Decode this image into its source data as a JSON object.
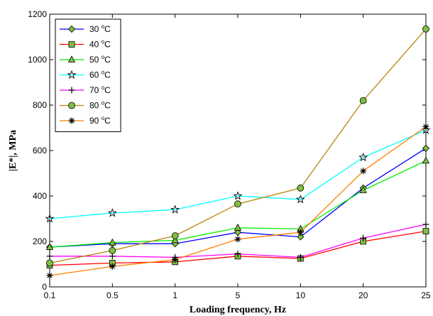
{
  "chart_data": {
    "type": "line",
    "xlabel": "Loading frequency, Hz",
    "ylabel": "|E*|, MPa",
    "categories": [
      "0.1",
      "0.5",
      "1",
      "5",
      "10",
      "20",
      "25"
    ],
    "ylim": [
      0,
      1200
    ],
    "yticks": [
      0,
      200,
      400,
      600,
      800,
      1000,
      1200
    ],
    "grid": false,
    "legend_position": "top-left",
    "series": [
      {
        "name": "30 °C",
        "label_num": "30",
        "label_unit": "C",
        "color": "#0000ff",
        "marker": "diamond",
        "values": [
          175,
          190,
          190,
          240,
          220,
          435,
          610
        ]
      },
      {
        "name": "40 °C",
        "label_num": "40",
        "label_unit": "C",
        "color": "#ff0000",
        "marker": "square",
        "values": [
          95,
          105,
          110,
          135,
          125,
          200,
          245
        ]
      },
      {
        "name": "50 °C",
        "label_num": "50",
        "label_unit": "C",
        "color": "#00ee00",
        "marker": "triangle",
        "values": [
          175,
          195,
          205,
          260,
          255,
          425,
          555
        ]
      },
      {
        "name": "60 °C",
        "label_num": "60",
        "label_unit": "C",
        "color": "#00ffff",
        "marker": "star",
        "values": [
          300,
          325,
          340,
          400,
          385,
          570,
          690
        ]
      },
      {
        "name": "70 °C",
        "label_num": "70",
        "label_unit": "C",
        "color": "#ff00ff",
        "marker": "plus",
        "values": [
          135,
          135,
          130,
          145,
          130,
          215,
          275
        ]
      },
      {
        "name": "80 °C",
        "label_num": "80",
        "label_unit": "C",
        "color": "#b8860b",
        "marker": "circle",
        "values": [
          105,
          160,
          225,
          365,
          435,
          820,
          1135
        ]
      },
      {
        "name": "90 °C",
        "label_num": "90",
        "label_unit": "C",
        "color": "#ff8000",
        "marker": "asterisk",
        "values": [
          50,
          90,
          120,
          210,
          240,
          510,
          705
        ]
      }
    ]
  }
}
